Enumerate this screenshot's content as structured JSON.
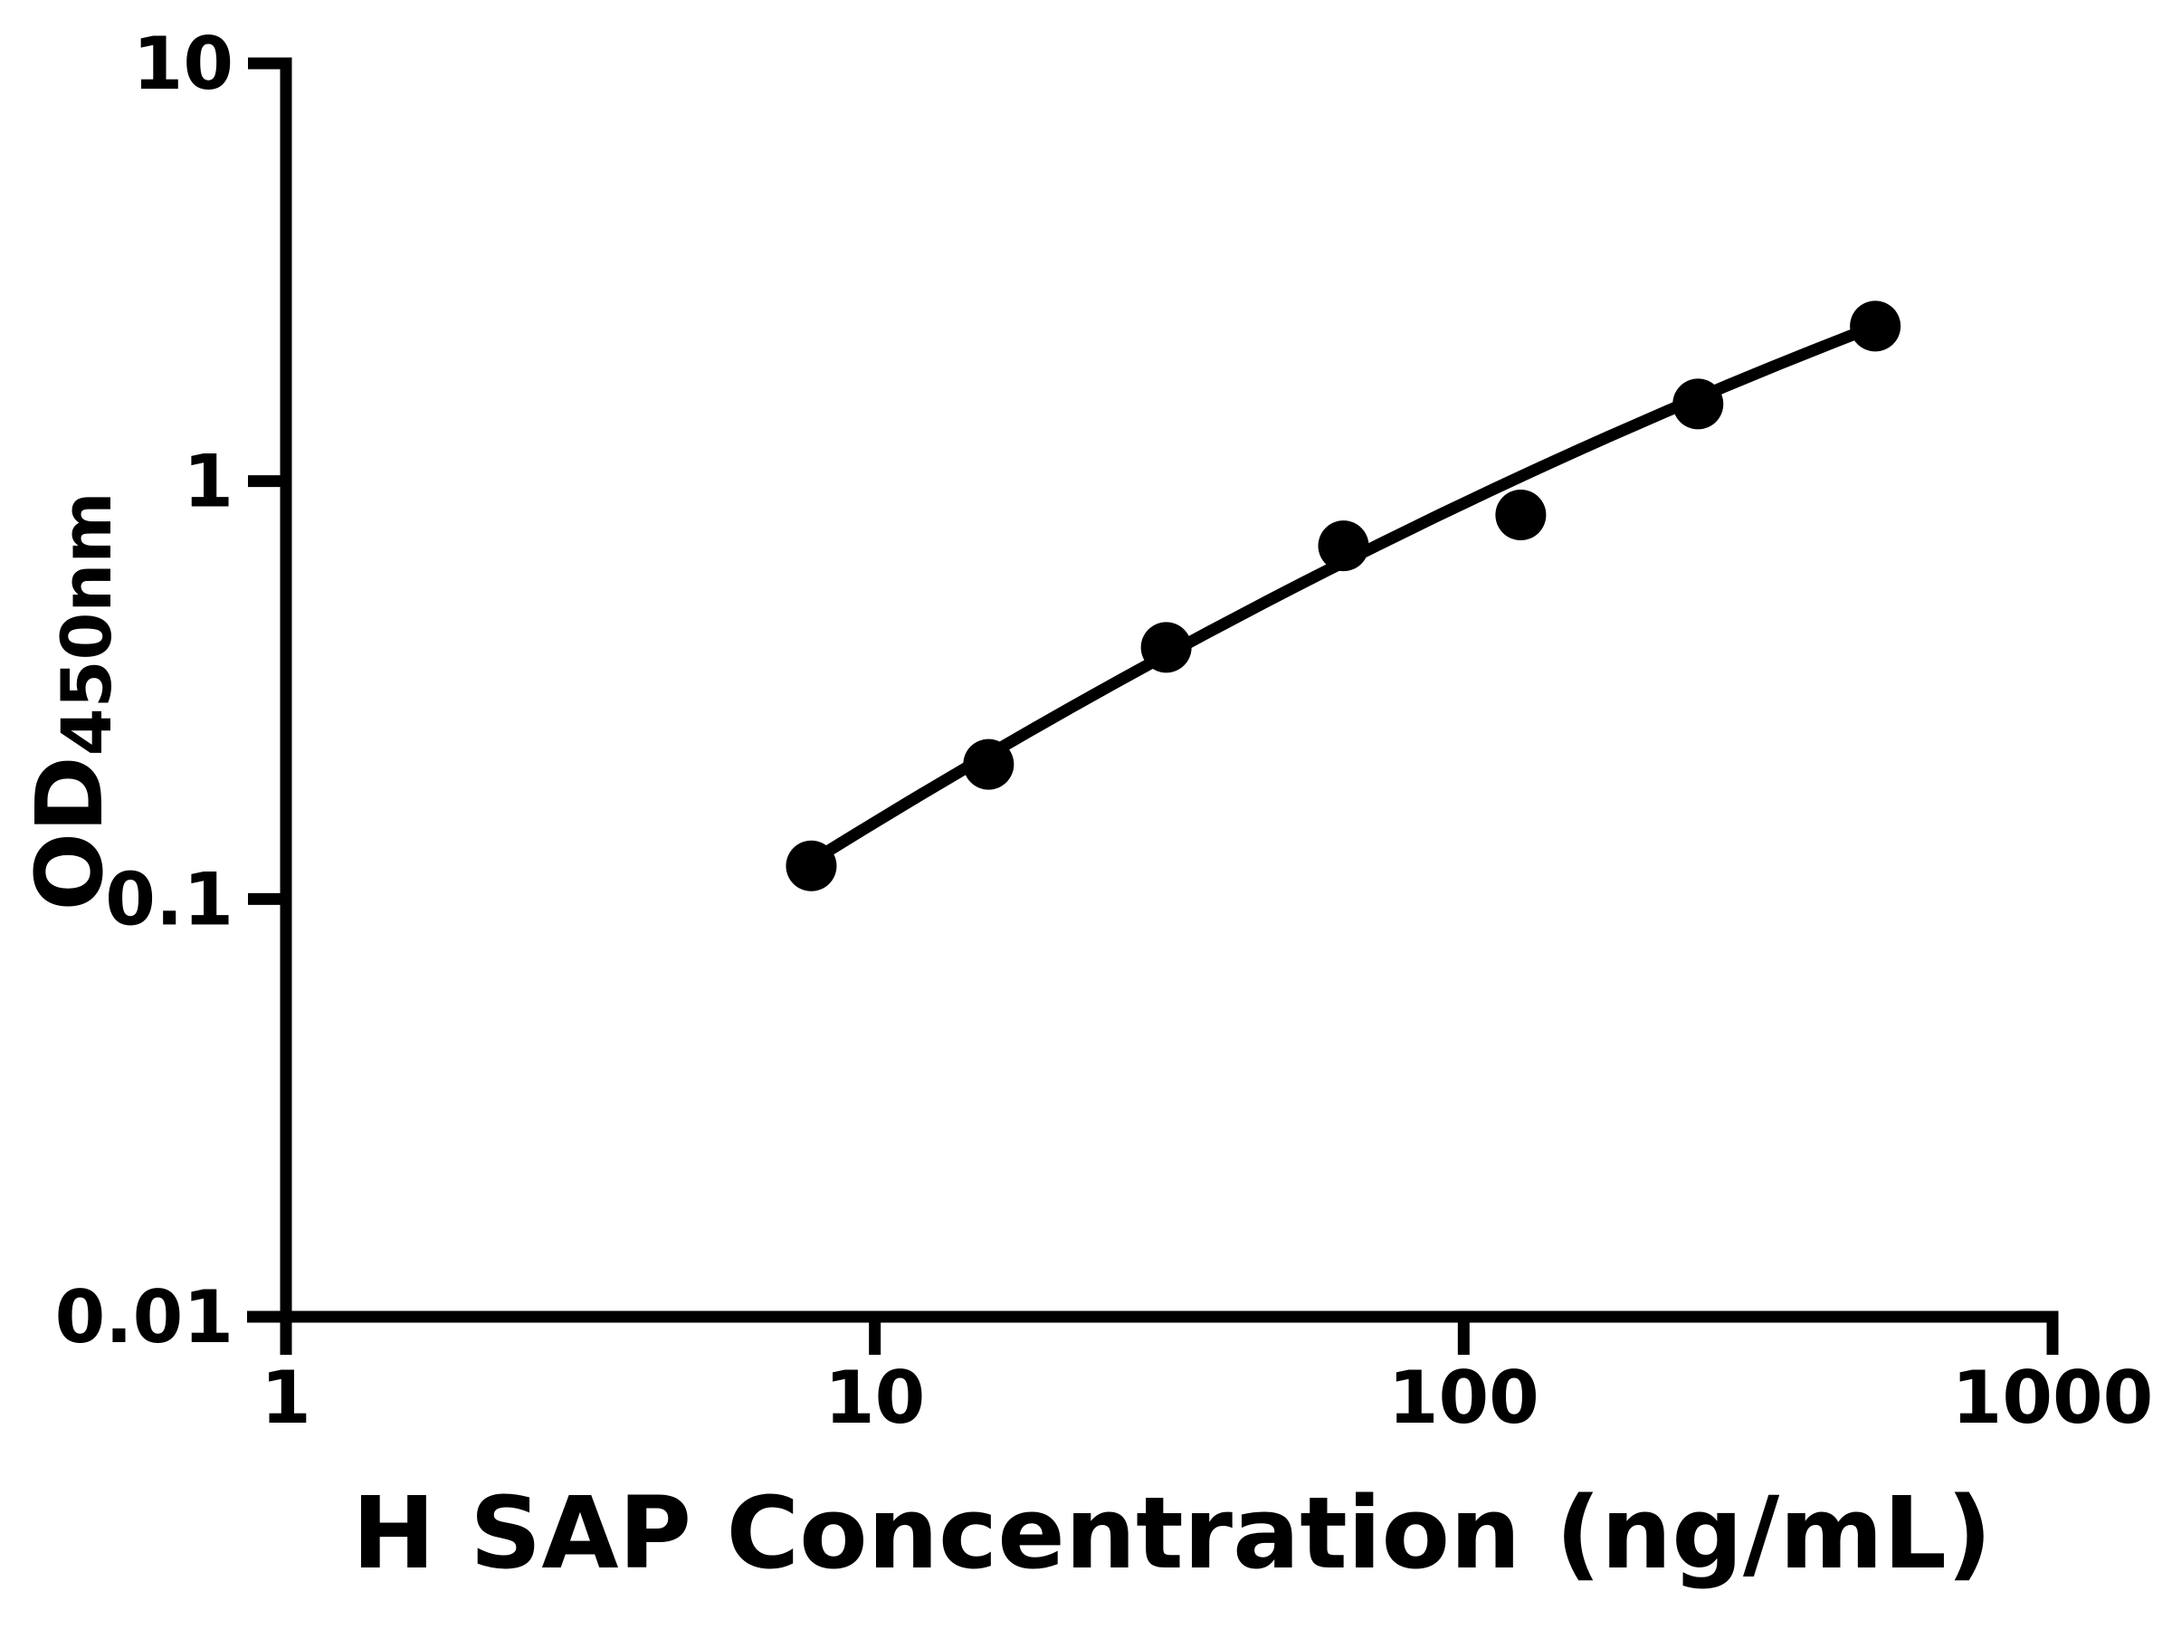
{
  "figure": {
    "background_color": "#ffffff",
    "ink_color": "#000000"
  },
  "chart_data": {
    "type": "scatter",
    "title": "",
    "xlabel": "H SAP Concentration (ng/mL)",
    "ylabel": "OD",
    "ylabel_subscript": "450nm",
    "x_scale": "log",
    "y_scale": "log",
    "xlim": [
      1,
      1000
    ],
    "ylim": [
      0.01,
      10
    ],
    "x_ticks": [
      1,
      10,
      100,
      1000
    ],
    "x_tick_labels": [
      "1",
      "10",
      "100",
      "1000"
    ],
    "y_ticks": [
      0.01,
      0.1,
      1,
      10
    ],
    "y_tick_labels": [
      "0.01",
      "0.1",
      "1",
      "10"
    ],
    "grid": false,
    "legend": null,
    "series": [
      {
        "name": "standard-points",
        "type": "scatter",
        "marker": "filled-circle",
        "color": "#000000",
        "x": [
          7.8,
          15.6,
          31.25,
          62.5,
          125,
          250,
          500
        ],
        "y": [
          0.12,
          0.21,
          0.4,
          0.7,
          0.83,
          1.53,
          2.35
        ]
      },
      {
        "name": "fit-line",
        "type": "line",
        "color": "#000000",
        "x": [
          7.8,
          62.5,
          500
        ],
        "y": [
          0.123,
          0.64,
          2.35
        ]
      }
    ]
  }
}
